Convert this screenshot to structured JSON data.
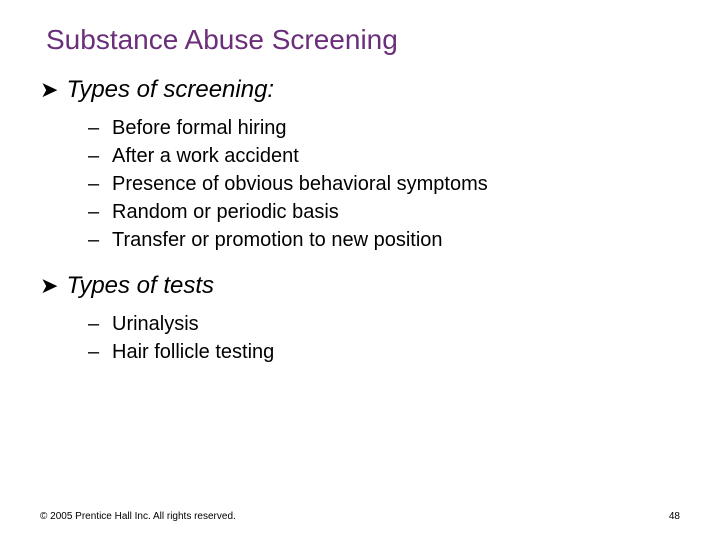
{
  "colors": {
    "title": "#6b2e7a",
    "body": "#000000",
    "footer": "#000000",
    "background": "#ffffff"
  },
  "title": "Substance Abuse Screening",
  "sections": [
    {
      "heading": "Types of screening:",
      "items": [
        "Before formal hiring",
        "After a work accident",
        "Presence of obvious behavioral symptoms",
        "Random or periodic basis",
        "Transfer or promotion to new position"
      ]
    },
    {
      "heading": "Types of tests",
      "items": [
        "Urinalysis",
        "Hair follicle testing"
      ]
    }
  ],
  "footer": {
    "copyright": "© 2005 Prentice Hall Inc. All rights reserved.",
    "pageNumber": "48"
  },
  "bullets": {
    "level1": "➤",
    "level2": "–"
  }
}
